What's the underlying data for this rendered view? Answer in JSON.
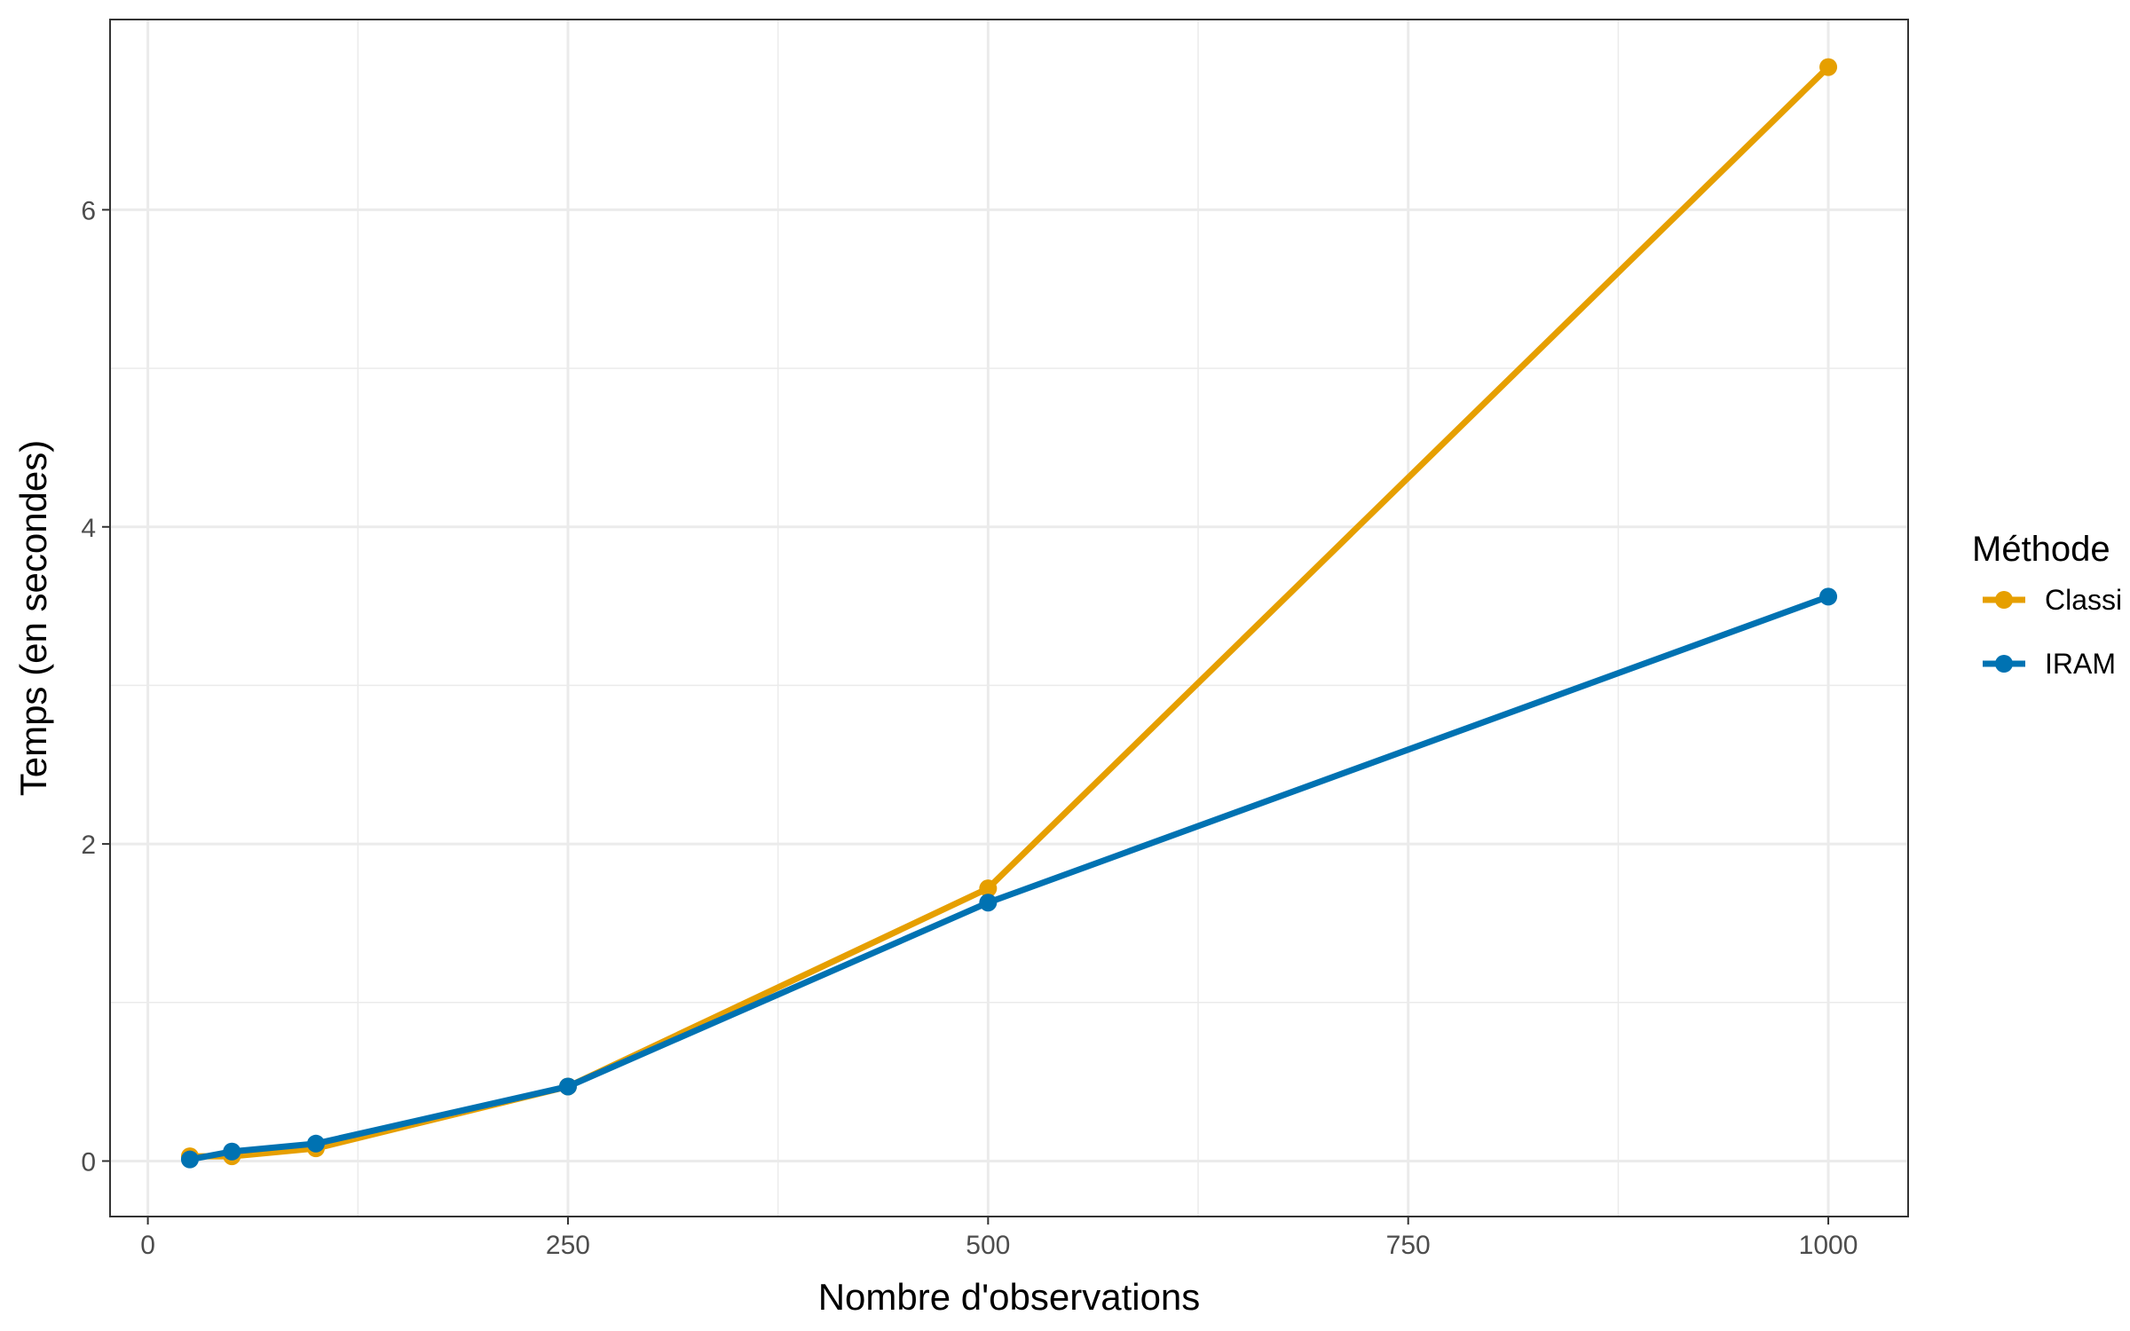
{
  "chart_data": {
    "type": "line",
    "title": "",
    "xlabel": "Nombre d'observations",
    "ylabel": "Temps (en secondes)",
    "xlim": [
      -22.5,
      1047.5
    ],
    "ylim": [
      -0.35,
      7.2
    ],
    "x_ticks": [
      0,
      250,
      500,
      750,
      1000
    ],
    "x_tick_labels": [
      "0",
      "250",
      "500",
      "750",
      "1000"
    ],
    "y_ticks": [
      0,
      2,
      4,
      6
    ],
    "y_tick_labels": [
      "0",
      "2",
      "4",
      "6"
    ],
    "grid": true,
    "legend": {
      "title": "Méthode",
      "position": "right"
    },
    "series": [
      {
        "name": "Classi",
        "color": "#E69F00",
        "x": [
          25,
          50,
          100,
          250,
          500,
          1000
        ],
        "y": [
          0.03,
          0.03,
          0.08,
          0.47,
          1.72,
          6.9
        ]
      },
      {
        "name": "IRAM",
        "color": "#0072B2",
        "x": [
          25,
          50,
          100,
          250,
          500,
          1000
        ],
        "y": [
          0.01,
          0.06,
          0.11,
          0.47,
          1.63,
          3.56
        ]
      }
    ]
  }
}
